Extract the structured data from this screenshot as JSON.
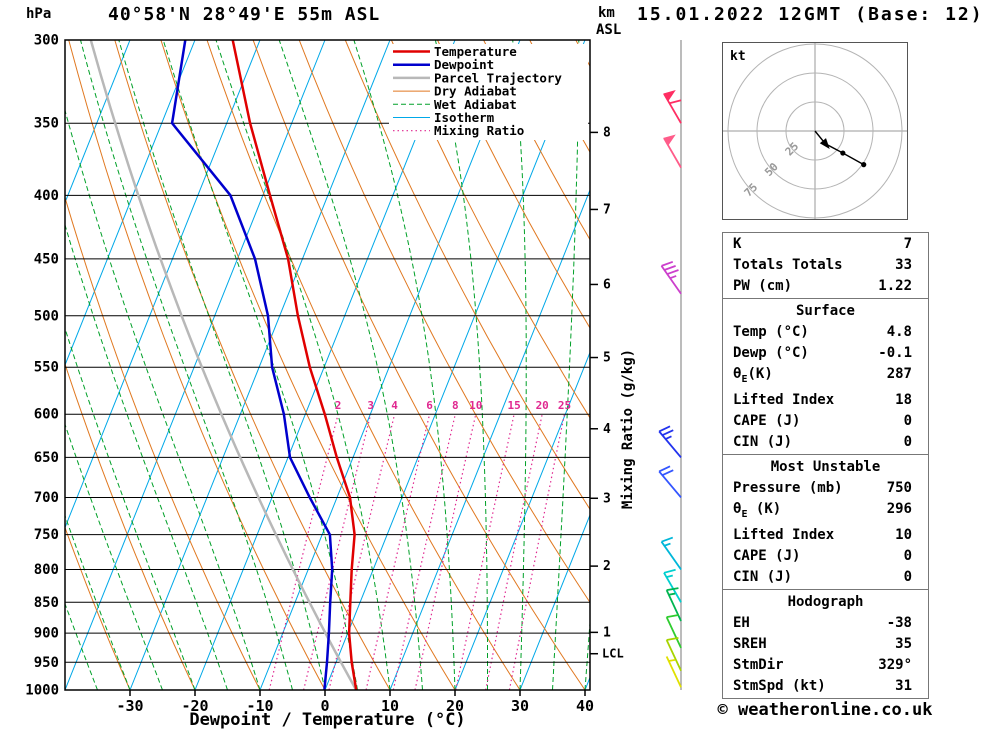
{
  "header": {
    "pressure_unit": "hPa",
    "station_title": "40°58'N 28°49'E 55m ASL",
    "valid_time_title": "15.01.2022 12GMT (Base: 12)",
    "km_unit": "km",
    "asl_label": "ASL"
  },
  "footer": {
    "copyright": "© weatheronline.co.uk"
  },
  "axes": {
    "xlabel": "Dewpoint / Temperature (°C)",
    "right_axis_label": "Mixing Ratio (g/kg)",
    "pressure_ticks": [
      300,
      350,
      400,
      450,
      500,
      550,
      600,
      650,
      700,
      750,
      800,
      850,
      900,
      950,
      1000
    ],
    "temp_ticks": [
      -30,
      -20,
      -10,
      0,
      10,
      20,
      30,
      40
    ],
    "km_ticks": [
      1,
      2,
      3,
      4,
      5,
      6,
      7,
      8
    ],
    "lcl_label": "LCL"
  },
  "legend": [
    {
      "label": "Temperature",
      "color": "#e00000",
      "style": "solid",
      "width": 2.5
    },
    {
      "label": "Dewpoint",
      "color": "#0000cd",
      "style": "solid",
      "width": 2.5
    },
    {
      "label": "Parcel Trajectory",
      "color": "#b8b8b8",
      "style": "solid",
      "width": 2.5
    },
    {
      "label": "Dry Adiabat",
      "color": "#e07820",
      "style": "solid",
      "width": 1
    },
    {
      "label": "Wet Adiabat",
      "color": "#00a028",
      "style": "dashed",
      "width": 1
    },
    {
      "label": "Isotherm",
      "color": "#00a8e8",
      "style": "solid",
      "width": 1
    },
    {
      "label": "Mixing Ratio",
      "color": "#e02890",
      "style": "dotted",
      "width": 1.2
    }
  ],
  "chart_data": {
    "type": "line",
    "subtype": "skew-t-log-p",
    "title": "40°58'N 28°49'E 55m ASL",
    "x_axis": {
      "label": "Dewpoint / Temperature (°C)",
      "range_C": [
        -30,
        40
      ],
      "ticks": [
        -30,
        -20,
        -10,
        0,
        10,
        20,
        30,
        40
      ]
    },
    "y_axis": {
      "label": "hPa",
      "scale": "log",
      "range_hPa": [
        300,
        1000
      ],
      "ticks": [
        300,
        350,
        400,
        450,
        500,
        550,
        600,
        650,
        700,
        750,
        800,
        850,
        900,
        950,
        1000
      ]
    },
    "altitude_axis_km": [
      1,
      2,
      3,
      4,
      5,
      6,
      7,
      8
    ],
    "pressure_hPa": [
      1000,
      950,
      900,
      850,
      800,
      750,
      700,
      650,
      600,
      550,
      500,
      450,
      400,
      350,
      300
    ],
    "series": [
      {
        "name": "Temperature",
        "color": "#e00000",
        "values_C": [
          4.8,
          2.4,
          0.2,
          -1.5,
          -3.3,
          -5.0,
          -8.0,
          -12.5,
          -17.0,
          -22.2,
          -27.2,
          -32.2,
          -38.9,
          -46.4,
          -54.2
        ]
      },
      {
        "name": "Dewpoint",
        "color": "#0000cd",
        "values_C": [
          -0.1,
          -1.4,
          -2.9,
          -4.6,
          -6.3,
          -8.8,
          -14.2,
          -19.7,
          -23.3,
          -28.0,
          -31.8,
          -37.3,
          -45.0,
          -58.4,
          -61.5
        ]
      }
    ],
    "parcel": {
      "name": "Parcel Trajectory",
      "color": "#b8b8b8",
      "surface_temp_C": 4.8,
      "path": "dry-adiabat-from-surface"
    },
    "background": {
      "isotherms": {
        "color": "#00a8e8",
        "start_C": -120,
        "end_C": 40,
        "step_C": 10
      },
      "dry_adiabats": {
        "color": "#e07820",
        "start_C": -40,
        "end_C": 160,
        "step_C": 10
      },
      "wet_adiabats": {
        "color": "#00a028",
        "start_C": -40,
        "end_C": 40,
        "step_C": 5
      },
      "mixing_ratio_g_kg": [
        2,
        3,
        4,
        6,
        8,
        10,
        15,
        20,
        25
      ],
      "mixing_ratio_color": "#e02890"
    },
    "lcl": {
      "label": "LCL",
      "pressure_hPa": 935
    },
    "wind_barbs": [
      {
        "pressure_hPa": 350,
        "speed_kt": 60,
        "dir_deg": 330,
        "color": "#ff2e63"
      },
      {
        "pressure_hPa": 380,
        "speed_kt": 50,
        "dir_deg": 330,
        "color": "#ff5c8a"
      },
      {
        "pressure_hPa": 480,
        "speed_kt": 35,
        "dir_deg": 325,
        "color": "#cc3fcc"
      },
      {
        "pressure_hPa": 650,
        "speed_kt": 25,
        "dir_deg": 320,
        "color": "#2233ee"
      },
      {
        "pressure_hPa": 700,
        "speed_kt": 20,
        "dir_deg": 320,
        "color": "#3355ff"
      },
      {
        "pressure_hPa": 800,
        "speed_kt": 15,
        "dir_deg": 325,
        "color": "#00b7d9"
      },
      {
        "pressure_hPa": 850,
        "speed_kt": 15,
        "dir_deg": 330,
        "color": "#00cfcf"
      },
      {
        "pressure_hPa": 880,
        "speed_kt": 15,
        "dir_deg": 335,
        "color": "#00b550"
      },
      {
        "pressure_hPa": 925,
        "speed_kt": 10,
        "dir_deg": 335,
        "color": "#2fcc2f"
      },
      {
        "pressure_hPa": 965,
        "speed_kt": 10,
        "dir_deg": 335,
        "color": "#a7d400"
      },
      {
        "pressure_hPa": 995,
        "speed_kt": 5,
        "dir_deg": 335,
        "color": "#e0e000"
      }
    ]
  },
  "hodograph": {
    "unit_label": "kt",
    "ring_step_kt": 25,
    "ring_labels": [
      "25",
      "50",
      "75"
    ],
    "trace_uv_kt": [
      [
        0,
        0
      ],
      [
        9,
        -11
      ],
      [
        24,
        -19
      ],
      [
        42,
        -29
      ]
    ],
    "dot_indices": [
      2,
      3
    ],
    "arrow_index": 1
  },
  "tables": [
    {
      "name": "indices-table",
      "rows": [
        {
          "label": "K",
          "value": "7"
        },
        {
          "label": "Totals Totals",
          "value": "33"
        },
        {
          "label": "PW (cm)",
          "value": "1.22"
        }
      ]
    },
    {
      "name": "surface-table",
      "header": "Surface",
      "rows": [
        {
          "label": "Temp (°C)",
          "value": "4.8"
        },
        {
          "label": "Dewp (°C)",
          "value": "-0.1"
        },
        {
          "label_pre": "θ",
          "label_sub": "E",
          "label_post": "(K)",
          "value": "287"
        },
        {
          "label": "Lifted Index",
          "value": "18"
        },
        {
          "label": "CAPE (J)",
          "value": "0"
        },
        {
          "label": "CIN (J)",
          "value": "0"
        }
      ]
    },
    {
      "name": "most-unstable-table",
      "header": "Most Unstable",
      "rows": [
        {
          "label": "Pressure (mb)",
          "value": "750"
        },
        {
          "label_pre": "θ",
          "label_sub": "E",
          "label_post": " (K)",
          "value": "296"
        },
        {
          "label": "Lifted Index",
          "value": "10"
        },
        {
          "label": "CAPE (J)",
          "value": "0"
        },
        {
          "label": "CIN (J)",
          "value": "0"
        }
      ]
    },
    {
      "name": "hodograph-table",
      "header": "Hodograph",
      "rows": [
        {
          "label": "EH",
          "value": "-38"
        },
        {
          "label": "SREH",
          "value": "35"
        },
        {
          "label": "StmDir",
          "value": "329°"
        },
        {
          "label": "StmSpd (kt)",
          "value": "31"
        }
      ]
    }
  ]
}
